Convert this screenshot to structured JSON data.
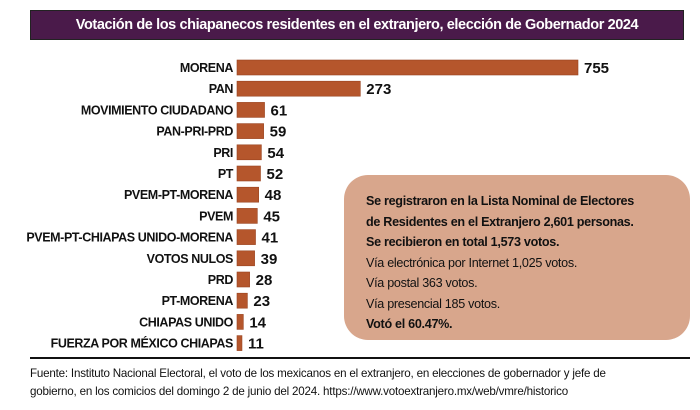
{
  "chart_data": {
    "type": "bar",
    "orientation": "horizontal",
    "title": "Votación de los chiapanecos residentes en el extranjero, elección de Gobernador 2024",
    "xlabel": "",
    "ylabel": "",
    "grid": false,
    "categories": [
      "MORENA",
      "PAN",
      "MOVIMIENTO CIUDADANO",
      "PAN-PRI-PRD",
      "PRI",
      "PT",
      "PVEM-PT-MORENA",
      "PVEM",
      "PVEM-PT-CHIAPAS UNIDO-MORENA",
      "VOTOS NULOS",
      "PRD",
      "PT-MORENA",
      "CHIAPAS UNIDO",
      "FUERZA POR MÉXICO CHIAPAS"
    ],
    "values": [
      755,
      273,
      61,
      59,
      54,
      52,
      48,
      45,
      41,
      39,
      28,
      23,
      14,
      11
    ],
    "xlim": [
      0,
      755
    ],
    "bar_color": "#b5562c"
  },
  "info_box": {
    "lines": [
      {
        "text": "Se registraron en la Lista Nominal de Electores",
        "bold": true
      },
      {
        "text": "de Residentes en el Extranjero 2,601 personas.",
        "bold": true
      },
      {
        "text": "Se recibieron en total 1,573 votos.",
        "bold": true
      },
      {
        "text": "Vía electrónica por Internet 1,025 votos.",
        "bold": false
      },
      {
        "text": "Vía postal 363 votos.",
        "bold": false
      },
      {
        "text": "Vía presencial 185 votos.",
        "bold": false
      },
      {
        "text": "Votó el 60.47%.",
        "bold": true
      }
    ],
    "background": "#d8a68c"
  },
  "source": {
    "line1": "Fuente: Instituto Nacional Electoral, el voto de los mexicanos en el extranjero, en elecciones de gobernador y jefe de",
    "line2": "gobierno, en los comicios del domingo 2 de junio del 2024. https://www.votoextranjero.mx/web/vmre/historico"
  },
  "colors": {
    "title_background": "#4a1a4a",
    "title_text": "#ffffff"
  }
}
